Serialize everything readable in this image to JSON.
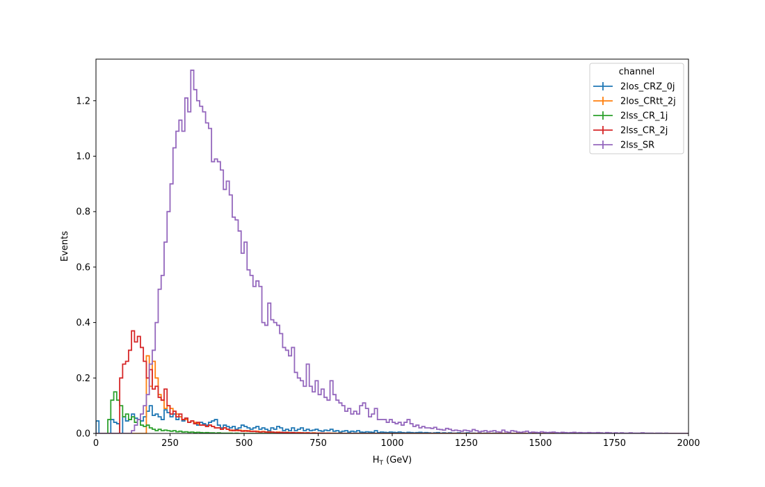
{
  "chart_data": {
    "type": "line",
    "title": "",
    "xlabel": "H",
    "xlabel_sub": "T",
    "xlabel_unit": " (GeV)",
    "ylabel": "Events",
    "xlim": [
      0,
      2000
    ],
    "ylim": [
      0,
      1.35
    ],
    "xticks": [
      0,
      250,
      500,
      750,
      1000,
      1250,
      1500,
      1750,
      2000
    ],
    "xtick_labels": [
      "0",
      "250",
      "500",
      "750",
      "1000",
      "1250",
      "1500",
      "1750",
      "2000"
    ],
    "yticks": [
      0.0,
      0.2,
      0.4,
      0.6,
      0.8,
      1.0,
      1.2
    ],
    "ytick_labels": [
      "0.0",
      "0.2",
      "0.4",
      "0.6",
      "0.8",
      "1.0",
      "1.2"
    ],
    "grid": false,
    "legend": {
      "title": "channel",
      "placement": "top-right"
    },
    "bin_width": 10,
    "series": [
      {
        "name": "2los_CRZ_0j",
        "color": "#1f77b4",
        "values": [
          0.045,
          0.0,
          0.0,
          0.0,
          0.0,
          0.05,
          0.04,
          0.035,
          0.0,
          0.06,
          0.045,
          0.05,
          0.07,
          0.055,
          0.05,
          0.045,
          0.06,
          0.08,
          0.1,
          0.065,
          0.07,
          0.06,
          0.05,
          0.085,
          0.075,
          0.06,
          0.07,
          0.05,
          0.06,
          0.045,
          0.055,
          0.04,
          0.045,
          0.035,
          0.03,
          0.04,
          0.035,
          0.03,
          0.04,
          0.045,
          0.05,
          0.03,
          0.02,
          0.03,
          0.025,
          0.02,
          0.025,
          0.015,
          0.02,
          0.03,
          0.025,
          0.02,
          0.015,
          0.02,
          0.025,
          0.015,
          0.02,
          0.015,
          0.01,
          0.02,
          0.015,
          0.025,
          0.02,
          0.01,
          0.015,
          0.01,
          0.02,
          0.01,
          0.015,
          0.02,
          0.01,
          0.015,
          0.01,
          0.012,
          0.015,
          0.01,
          0.008,
          0.012,
          0.01,
          0.015,
          0.008,
          0.01,
          0.005,
          0.008,
          0.01,
          0.005,
          0.008,
          0.006,
          0.01,
          0.005,
          0.004,
          0.006,
          0.005,
          0.004,
          0.01,
          0.003,
          0.005,
          0.004,
          0.003,
          0.005,
          0.004,
          0.003,
          0.005,
          0.003,
          0.002,
          0.004,
          0.003,
          0.002,
          0.003,
          0.004,
          0.002,
          0.003,
          0.002,
          0.001,
          0.002,
          0.003,
          0.001,
          0.002,
          0.001,
          0.002,
          0.001,
          0.001,
          0.002,
          0.001,
          0.001,
          0.002,
          0.001,
          0.001,
          0.0,
          0.001,
          0.0,
          0.001,
          0.0,
          0.0,
          0.001,
          0.0,
          0.0,
          0.0,
          0.0,
          0.0,
          0.0,
          0.0,
          0.0,
          0.0,
          0.0,
          0.0,
          0.0,
          0.0,
          0.0,
          0.0,
          0.0,
          0.0,
          0.0,
          0.0,
          0.0,
          0.0,
          0.0,
          0.0,
          0.0,
          0.0,
          0.0,
          0.0,
          0.0,
          0.0,
          0.0,
          0.0,
          0.0,
          0.0,
          0.0,
          0.0,
          0.0,
          0.0,
          0.0,
          0.0,
          0.0,
          0.0,
          0.0,
          0.0,
          0.0,
          0.0,
          0.0,
          0.0,
          0.0,
          0.0,
          0.0,
          0.0,
          0.0,
          0.0,
          0.0,
          0.0,
          0.0,
          0.0,
          0.0,
          0.0,
          0.0,
          0.0,
          0.0,
          0.0,
          0.0,
          0.0
        ]
      },
      {
        "name": "2los_CRtt_2j",
        "color": "#ff7f0e",
        "values": [
          0.0,
          0.0,
          0.0,
          0.0,
          0.0,
          0.0,
          0.0,
          0.0,
          0.0,
          0.0,
          0.0,
          0.0,
          0.0,
          0.0,
          0.0,
          0.0,
          0.0,
          0.28,
          0.17,
          0.26,
          0.2,
          0.14,
          0.12,
          0.09,
          0.1,
          0.09,
          0.08,
          0.07,
          0.06,
          0.05,
          0.05,
          0.04,
          0.045,
          0.04,
          0.035,
          0.03,
          0.03,
          0.025,
          0.03,
          0.025,
          0.02,
          0.02,
          0.015,
          0.02,
          0.015,
          0.01,
          0.012,
          0.01,
          0.012,
          0.01,
          0.008,
          0.01,
          0.008,
          0.007,
          0.008,
          0.006,
          0.007,
          0.005,
          0.006,
          0.005,
          0.004,
          0.005,
          0.004,
          0.003,
          0.004,
          0.003,
          0.003,
          0.002,
          0.003,
          0.002,
          0.002,
          0.002,
          0.001,
          0.002,
          0.001,
          0.001,
          0.001,
          0.001,
          0.001,
          0.001,
          0.001,
          0.0,
          0.001,
          0.0,
          0.0,
          0.0,
          0.0,
          0.0,
          0.0,
          0.0,
          0.0,
          0.0,
          0.0,
          0.0,
          0.0,
          0.0,
          0.0,
          0.0,
          0.0,
          0.0,
          0.0,
          0.0,
          0.0,
          0.0,
          0.0,
          0.0,
          0.0,
          0.0,
          0.0,
          0.0,
          0.0,
          0.0,
          0.0,
          0.0,
          0.0,
          0.0,
          0.0,
          0.0,
          0.0,
          0.0,
          0.0,
          0.0,
          0.0,
          0.0,
          0.0,
          0.0,
          0.0,
          0.0,
          0.0,
          0.0,
          0.0,
          0.0,
          0.0,
          0.0,
          0.0,
          0.0,
          0.0,
          0.0,
          0.0,
          0.0,
          0.0,
          0.0,
          0.0,
          0.0,
          0.0,
          0.0,
          0.0,
          0.0,
          0.0,
          0.0,
          0.0,
          0.0,
          0.0,
          0.0,
          0.0,
          0.0,
          0.0,
          0.0,
          0.0,
          0.0,
          0.0,
          0.0,
          0.0,
          0.0,
          0.0,
          0.0,
          0.0,
          0.0,
          0.0,
          0.0,
          0.0,
          0.0,
          0.0,
          0.0,
          0.0,
          0.0,
          0.0,
          0.0,
          0.0,
          0.0,
          0.0,
          0.0,
          0.0,
          0.0,
          0.0,
          0.0,
          0.0,
          0.0,
          0.0,
          0.0,
          0.0,
          0.0,
          0.0,
          0.0,
          0.0,
          0.0,
          0.0,
          0.0,
          0.0,
          0.0,
          0.0,
          0.0,
          0.0,
          0.0,
          0.0,
          0.0,
          0.0,
          0.0,
          0.0
        ]
      },
      {
        "name": "2lss_CR_1j",
        "color": "#2ca02c",
        "values": [
          0.0,
          0.0,
          0.0,
          0.0,
          0.05,
          0.12,
          0.15,
          0.12,
          0.1,
          0.06,
          0.07,
          0.05,
          0.06,
          0.04,
          0.05,
          0.03,
          0.025,
          0.03,
          0.02,
          0.015,
          0.01,
          0.015,
          0.01,
          0.012,
          0.01,
          0.008,
          0.01,
          0.006,
          0.008,
          0.005,
          0.006,
          0.004,
          0.005,
          0.003,
          0.004,
          0.003,
          0.002,
          0.003,
          0.002,
          0.002,
          0.001,
          0.002,
          0.001,
          0.001,
          0.001,
          0.001,
          0.0,
          0.001,
          0.0,
          0.0,
          0.0,
          0.0,
          0.0,
          0.0,
          0.0,
          0.0,
          0.0,
          0.0,
          0.0,
          0.0,
          0.0,
          0.0,
          0.0,
          0.0,
          0.0,
          0.0,
          0.0,
          0.0,
          0.0,
          0.0,
          0.0,
          0.0,
          0.0,
          0.0,
          0.0,
          0.0,
          0.0,
          0.0,
          0.0,
          0.0,
          0.0,
          0.0,
          0.0,
          0.0,
          0.0,
          0.0,
          0.0,
          0.0,
          0.0,
          0.0,
          0.0,
          0.0,
          0.0,
          0.0,
          0.0,
          0.0,
          0.0,
          0.0,
          0.0,
          0.0,
          0.0,
          0.0,
          0.0,
          0.0,
          0.0,
          0.0,
          0.0,
          0.0,
          0.0,
          0.0,
          0.0,
          0.0,
          0.0,
          0.0,
          0.0,
          0.0,
          0.0,
          0.0,
          0.0,
          0.0,
          0.0,
          0.0,
          0.0,
          0.0,
          0.0,
          0.0,
          0.0,
          0.0,
          0.0,
          0.0,
          0.0,
          0.0,
          0.0,
          0.0,
          0.0,
          0.0,
          0.0,
          0.0,
          0.0,
          0.0,
          0.0,
          0.0,
          0.0,
          0.0,
          0.0,
          0.0,
          0.0,
          0.0,
          0.0,
          0.0,
          0.0,
          0.0,
          0.0,
          0.0,
          0.0,
          0.0,
          0.0,
          0.0,
          0.0,
          0.0,
          0.0,
          0.0,
          0.0,
          0.0,
          0.0,
          0.0,
          0.0,
          0.0,
          0.0,
          0.0,
          0.0,
          0.0,
          0.0,
          0.0,
          0.0,
          0.0,
          0.0,
          0.0,
          0.0,
          0.0,
          0.0,
          0.0,
          0.0,
          0.0,
          0.0,
          0.0,
          0.0,
          0.0,
          0.0,
          0.0,
          0.0,
          0.0,
          0.0,
          0.0,
          0.0,
          0.0,
          0.0,
          0.0,
          0.0,
          0.0,
          0.0,
          0.0,
          0.0,
          0.0,
          0.0,
          0.0,
          0.0
        ]
      },
      {
        "name": "2lss_CR_2j",
        "color": "#d62728",
        "values": [
          0.0,
          0.0,
          0.0,
          0.0,
          0.0,
          0.0,
          0.0,
          0.0,
          0.2,
          0.25,
          0.26,
          0.3,
          0.37,
          0.33,
          0.35,
          0.31,
          0.26,
          0.2,
          0.23,
          0.16,
          0.17,
          0.13,
          0.12,
          0.16,
          0.1,
          0.07,
          0.08,
          0.06,
          0.07,
          0.05,
          0.055,
          0.04,
          0.045,
          0.035,
          0.04,
          0.03,
          0.03,
          0.025,
          0.03,
          0.025,
          0.02,
          0.02,
          0.015,
          0.02,
          0.015,
          0.012,
          0.01,
          0.012,
          0.01,
          0.008,
          0.01,
          0.008,
          0.007,
          0.008,
          0.006,
          0.005,
          0.006,
          0.005,
          0.004,
          0.005,
          0.004,
          0.003,
          0.004,
          0.003,
          0.003,
          0.002,
          0.003,
          0.002,
          0.002,
          0.002,
          0.001,
          0.002,
          0.001,
          0.001,
          0.001,
          0.001,
          0.001,
          0.0,
          0.001,
          0.0,
          0.0,
          0.0,
          0.0,
          0.0,
          0.0,
          0.0,
          0.0,
          0.0,
          0.0,
          0.0,
          0.0,
          0.0,
          0.0,
          0.0,
          0.0,
          0.0,
          0.0,
          0.0,
          0.0,
          0.0,
          0.0,
          0.0,
          0.0,
          0.0,
          0.0,
          0.0,
          0.0,
          0.0,
          0.0,
          0.0,
          0.0,
          0.0,
          0.0,
          0.0,
          0.0,
          0.0,
          0.0,
          0.0,
          0.0,
          0.0,
          0.0,
          0.0,
          0.0,
          0.0,
          0.0,
          0.0,
          0.0,
          0.0,
          0.0,
          0.0,
          0.0,
          0.0,
          0.0,
          0.0,
          0.0,
          0.0,
          0.0,
          0.0,
          0.0,
          0.0,
          0.0,
          0.0,
          0.0,
          0.0,
          0.0,
          0.0,
          0.0,
          0.0,
          0.0,
          0.0,
          0.0,
          0.0,
          0.0,
          0.0,
          0.0,
          0.0,
          0.0,
          0.0,
          0.0,
          0.0,
          0.0,
          0.0,
          0.0,
          0.0,
          0.0,
          0.0,
          0.0,
          0.0,
          0.0,
          0.0,
          0.0,
          0.0,
          0.0,
          0.0,
          0.0,
          0.0,
          0.0,
          0.0,
          0.0,
          0.0,
          0.0,
          0.0,
          0.0,
          0.0,
          0.0,
          0.0,
          0.0,
          0.0,
          0.0,
          0.0,
          0.0,
          0.0,
          0.0,
          0.0,
          0.0,
          0.0,
          0.0,
          0.0,
          0.0,
          0.0,
          0.0,
          0.0,
          0.0,
          0.0,
          0.0,
          0.0,
          0.0,
          0.0,
          0.0
        ]
      },
      {
        "name": "2lss_SR",
        "color": "#9467bd",
        "values": [
          0.0,
          0.0,
          0.0,
          0.0,
          0.0,
          0.0,
          0.0,
          0.0,
          0.0,
          0.0,
          0.0,
          0.0,
          0.01,
          0.03,
          0.05,
          0.07,
          0.1,
          0.14,
          0.25,
          0.3,
          0.4,
          0.52,
          0.57,
          0.69,
          0.8,
          0.9,
          1.03,
          1.09,
          1.13,
          1.09,
          1.21,
          1.16,
          1.31,
          1.24,
          1.2,
          1.18,
          1.16,
          1.12,
          1.1,
          0.98,
          0.99,
          0.98,
          0.95,
          0.88,
          0.91,
          0.86,
          0.78,
          0.77,
          0.73,
          0.65,
          0.69,
          0.59,
          0.57,
          0.53,
          0.55,
          0.53,
          0.4,
          0.39,
          0.47,
          0.41,
          0.4,
          0.39,
          0.36,
          0.31,
          0.3,
          0.28,
          0.31,
          0.22,
          0.2,
          0.19,
          0.17,
          0.25,
          0.17,
          0.15,
          0.19,
          0.14,
          0.16,
          0.13,
          0.12,
          0.19,
          0.14,
          0.12,
          0.11,
          0.1,
          0.08,
          0.09,
          0.07,
          0.08,
          0.07,
          0.1,
          0.11,
          0.09,
          0.06,
          0.07,
          0.09,
          0.05,
          0.05,
          0.05,
          0.04,
          0.05,
          0.04,
          0.035,
          0.04,
          0.03,
          0.04,
          0.05,
          0.035,
          0.025,
          0.03,
          0.02,
          0.025,
          0.02,
          0.02,
          0.018,
          0.022,
          0.015,
          0.014,
          0.012,
          0.018,
          0.015,
          0.01,
          0.012,
          0.01,
          0.008,
          0.012,
          0.01,
          0.008,
          0.014,
          0.01,
          0.006,
          0.008,
          0.01,
          0.006,
          0.008,
          0.01,
          0.006,
          0.005,
          0.012,
          0.006,
          0.004,
          0.01,
          0.008,
          0.005,
          0.004,
          0.006,
          0.008,
          0.003,
          0.005,
          0.004,
          0.003,
          0.006,
          0.004,
          0.003,
          0.004,
          0.005,
          0.003,
          0.002,
          0.004,
          0.003,
          0.002,
          0.003,
          0.004,
          0.002,
          0.003,
          0.002,
          0.002,
          0.003,
          0.002,
          0.002,
          0.003,
          0.002,
          0.001,
          0.003,
          0.002,
          0.001,
          0.002,
          0.001,
          0.002,
          0.001,
          0.001,
          0.002,
          0.001,
          0.001,
          0.001,
          0.002,
          0.001,
          0.001,
          0.001,
          0.0,
          0.001,
          0.001,
          0.0,
          0.001,
          0.0,
          0.0,
          0.0,
          0.0,
          0.0,
          0.0,
          0.0,
          0.0,
          0.0
        ]
      }
    ]
  }
}
